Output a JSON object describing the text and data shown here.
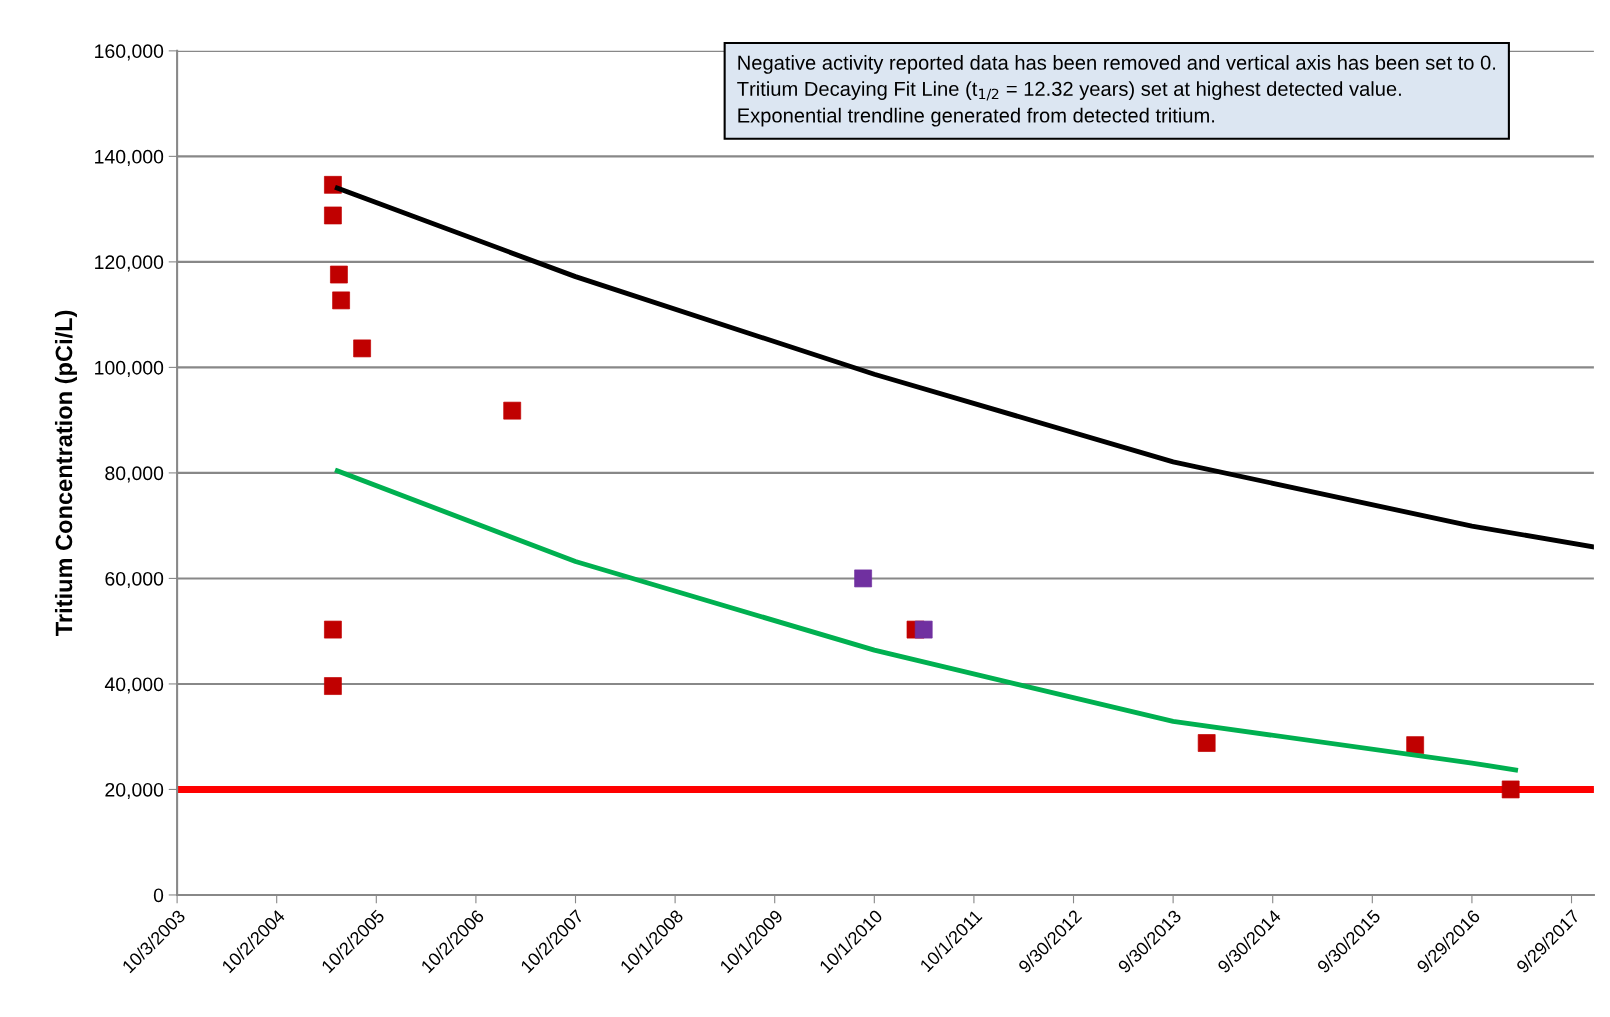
{
  "chart_data": {
    "type": "scatter",
    "ylabel": "Tritium Concentration (pCi/L)",
    "annotations": [
      "Negative activity reported data has been removed and vertical axis has been set to 0.",
      "Tritium Decaying Fit Line (t$_{1/2}$ = 12.32 years) set at highest detected value.",
      "Exponential trendline generated from detected tritium."
    ],
    "series": [
      {
        "color": "#c00000",
        "marker": "square",
        "x": [
          "2005-04-26",
          "2005-04-26",
          "2005-05-18",
          "2005-05-26",
          "2005-08-11",
          "2007-02-12",
          "2005-04-26",
          "2005-04-26",
          "2011-03-01",
          "2014-01-31",
          "2016-03-05",
          "2017-02-18"
        ],
        "values": [
          134600,
          128800,
          117600,
          112700,
          103600,
          91800,
          50300,
          39600,
          50300,
          28800,
          28400,
          20000
        ]
      },
      {
        "color": "#7030a0",
        "marker": "square",
        "x": [
          "2010-08-21",
          "2011-03-31"
        ],
        "values": [
          60000,
          50300
        ]
      },
      {
        "type": "line",
        "color": "#000000",
        "marker": "none",
        "x": [
          "2005-05-12",
          "2007-10-02",
          "2010-10-01",
          "2013-09-30",
          "2016-09-29",
          "2017-12-17"
        ],
        "values": [
          134000,
          117200,
          98700,
          82100,
          69900,
          66000
        ]
      },
      {
        "type": "line",
        "color": "#00b050",
        "marker": "none",
        "x": [
          "2005-05-12",
          "2007-10-02",
          "2010-10-01",
          "2013-09-30",
          "2016-09-29",
          "2017-03-08"
        ],
        "values": [
          80400,
          63200,
          46400,
          32900,
          25000,
          23700
        ]
      }
    ],
    "ref_lines": [
      {
        "axis": "y",
        "value": 20000,
        "color": "#ff0000"
      }
    ],
    "xlim": [
      "2003-10-03",
      "2017-12-20"
    ],
    "xticks": [
      {
        "value": "2003-10-03",
        "label": "10/3/2003"
      },
      {
        "value": "2004-10-02",
        "label": "10/2/2004"
      },
      {
        "value": "2005-10-02",
        "label": "10/2/2005"
      },
      {
        "value": "2006-10-02",
        "label": "10/2/2006"
      },
      {
        "value": "2007-10-02",
        "label": "10/2/2007"
      },
      {
        "value": "2008-10-01",
        "label": "10/1/2008"
      },
      {
        "value": "2009-10-01",
        "label": "10/1/2009"
      },
      {
        "value": "2010-10-01",
        "label": "10/1/2010"
      },
      {
        "value": "2011-10-01",
        "label": "10/1/2011"
      },
      {
        "value": "2012-09-30",
        "label": "9/30/2012"
      },
      {
        "value": "2013-09-30",
        "label": "9/30/2013"
      },
      {
        "value": "2014-09-30",
        "label": "9/30/2014"
      },
      {
        "value": "2015-09-30",
        "label": "9/30/2015"
      },
      {
        "value": "2016-09-29",
        "label": "9/29/2016"
      },
      {
        "value": "2017-09-29",
        "label": "9/29/2017"
      }
    ],
    "ylim": [
      0,
      160000
    ],
    "yticks": [
      0,
      {
        "value": 20000,
        "label": "20,000"
      },
      {
        "value": 40000,
        "label": "40,000"
      },
      {
        "value": 60000,
        "label": "60,000"
      },
      {
        "value": 80000,
        "label": "80,000"
      },
      {
        "value": 100000,
        "label": "100,000"
      },
      {
        "value": 120000,
        "label": "120,000"
      },
      {
        "value": 140000,
        "label": "140,000"
      },
      {
        "value": 160000,
        "label": "160,000"
      }
    ],
    "grid": "y",
    "legend": false
  }
}
